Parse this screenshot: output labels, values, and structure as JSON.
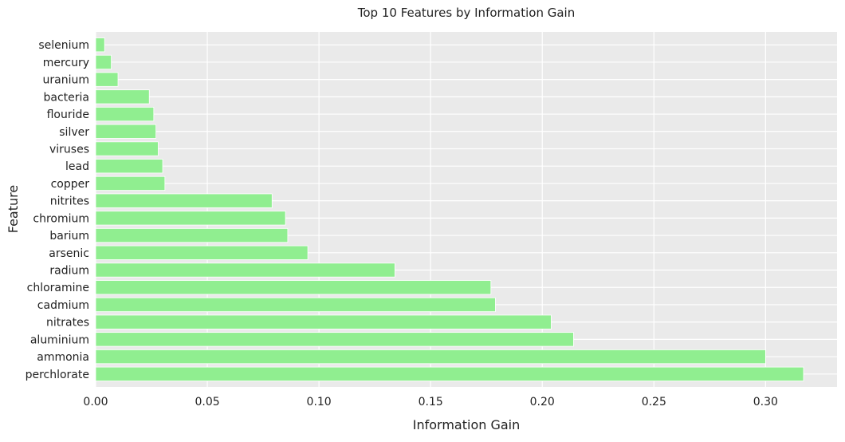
{
  "chart_data": {
    "type": "bar",
    "orientation": "horizontal",
    "title": "Top 10 Features by Information Gain",
    "xlabel": "Information Gain",
    "ylabel": "Feature",
    "xlim": [
      0,
      0.332
    ],
    "x_ticks": [
      0.0,
      0.05,
      0.1,
      0.15,
      0.2,
      0.25,
      0.3
    ],
    "x_tick_labels": [
      "0.00",
      "0.05",
      "0.10",
      "0.15",
      "0.20",
      "0.25",
      "0.30"
    ],
    "grid": true,
    "categories": [
      "perchlorate",
      "ammonia",
      "aluminium",
      "nitrates",
      "cadmium",
      "chloramine",
      "radium",
      "arsenic",
      "barium",
      "chromium",
      "nitrites",
      "copper",
      "lead",
      "viruses",
      "silver",
      "flouride",
      "bacteria",
      "uranium",
      "mercury",
      "selenium"
    ],
    "values": [
      0.317,
      0.3,
      0.214,
      0.204,
      0.179,
      0.177,
      0.134,
      0.095,
      0.086,
      0.085,
      0.079,
      0.031,
      0.03,
      0.028,
      0.027,
      0.026,
      0.024,
      0.01,
      0.007,
      0.004
    ],
    "colors": {
      "bar": "#90ee90",
      "background": "#eaeaea",
      "grid": "#ffffff",
      "text": "#222222"
    }
  }
}
